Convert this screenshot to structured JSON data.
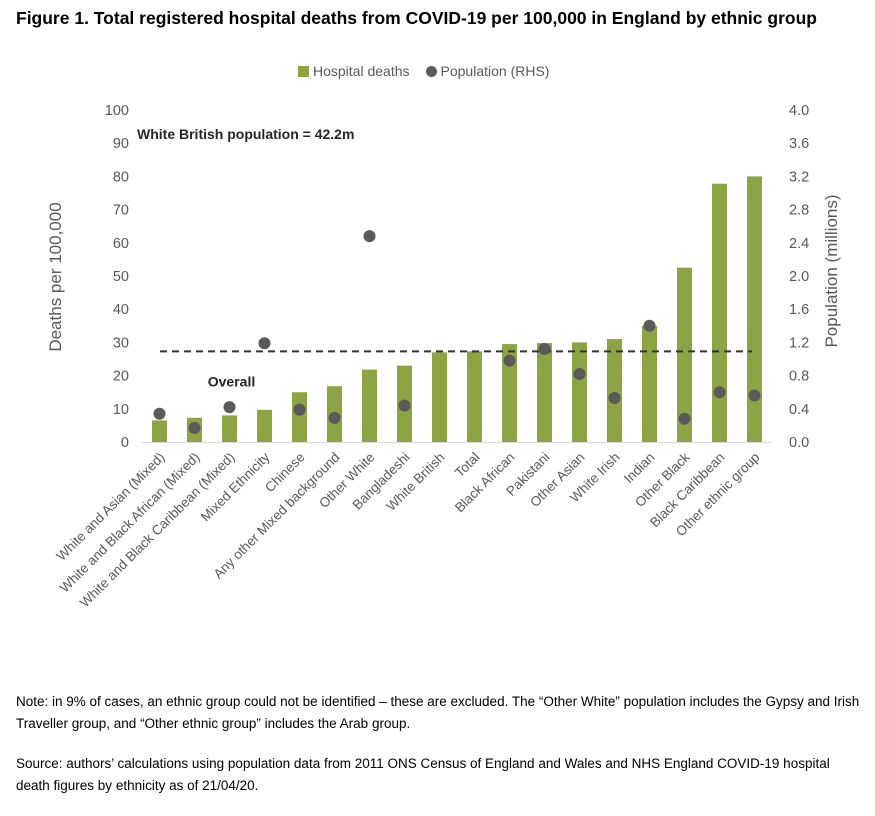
{
  "figure": {
    "title": "Figure 1. Total registered hospital deaths from COVID-19 per 100,000 in England by ethnic group",
    "note": "Note: in 9% of cases, an ethnic group could not be identified – these are excluded. The “Other White” population includes the Gypsy and Irish Traveller group, and “Other ethnic group” includes the Arab group.",
    "source": "Source: authors’ calculations using population data from 2011 ONS Census of England and Wales and NHS England COVID-19 hospital death figures by ethnicity as of 21/04/20."
  },
  "colors": {
    "bar": "#8da444",
    "dot": "#5a5a5a",
    "axis_text": "#595959",
    "grid": "#d9d9d9",
    "dashed": "#333333"
  },
  "chart_data": {
    "type": "bar",
    "categories": [
      "White and Asian (Mixed)",
      "White and Black African (Mixed)",
      "White and Black Caribbean (Mixed)",
      "Mixed Ethnicity",
      "Chinese",
      "Any other Mixed background",
      "Other White",
      "Bangladeshi",
      "White British",
      "Total",
      "Black African",
      "Pakistani",
      "Other Asian",
      "White Irish",
      "Indian",
      "Other Black",
      "Black Caribbean",
      "Other ethnic group"
    ],
    "series": [
      {
        "name": "Hospital deaths",
        "axis": "left",
        "type": "bar",
        "values": [
          6.5,
          7.3,
          8.0,
          9.7,
          15.0,
          16.8,
          21.8,
          23.0,
          27.0,
          27.3,
          29.5,
          29.8,
          30.0,
          31.0,
          35.0,
          52.5,
          77.8,
          80.0
        ]
      },
      {
        "name": "Population (RHS)",
        "axis": "right",
        "type": "scatter",
        "values": [
          0.34,
          0.17,
          0.42,
          1.19,
          0.39,
          0.29,
          2.48,
          0.44,
          null,
          null,
          0.98,
          1.12,
          0.82,
          0.53,
          1.4,
          0.28,
          0.6,
          0.56
        ]
      }
    ],
    "ylabel": "Deaths per 100,000",
    "ylim": [
      0,
      100
    ],
    "yticks": [
      0,
      10,
      20,
      30,
      40,
      50,
      60,
      70,
      80,
      90,
      100
    ],
    "y2label": "Population (millions)",
    "y2lim": [
      0,
      4.0
    ],
    "y2ticks": [
      "0.0",
      "0.4",
      "0.8",
      "1.2",
      "1.6",
      "2.0",
      "2.4",
      "2.8",
      "3.2",
      "3.6",
      "4.0"
    ],
    "reference_line": {
      "value": 27.3,
      "label": "Overall"
    },
    "annotation": "White British population = 42.2m",
    "grid": false,
    "legend_position": "top"
  }
}
